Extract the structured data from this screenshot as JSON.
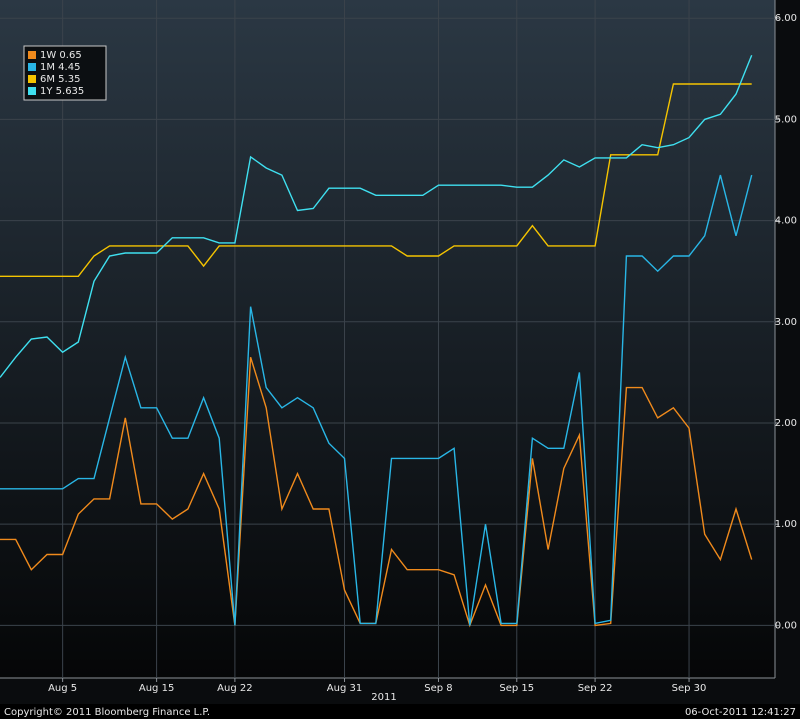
{
  "chart_data": {
    "type": "line",
    "categories": [
      null,
      null,
      null,
      null,
      "Aug 5",
      null,
      null,
      null,
      null,
      null,
      "Aug 15",
      null,
      null,
      null,
      null,
      "Aug 22",
      null,
      null,
      null,
      null,
      null,
      null,
      "Aug 31",
      null,
      null,
      null,
      null,
      null,
      "Sep 8",
      null,
      null,
      null,
      null,
      "Sep 15",
      null,
      null,
      null,
      null,
      "Sep 22",
      null,
      null,
      null,
      null,
      null,
      "Sep 30",
      null,
      null,
      null,
      null
    ],
    "xlabel": "2011",
    "series": [
      {
        "name": "1W 0.65",
        "color": "#f08a1c",
        "values": [
          0.85,
          0.85,
          0.55,
          0.7,
          0.7,
          1.1,
          1.25,
          1.25,
          2.05,
          1.2,
          1.2,
          1.05,
          1.15,
          1.5,
          1.15,
          0.0,
          2.65,
          2.15,
          1.15,
          1.5,
          1.15,
          1.15,
          0.35,
          0.02,
          0.02,
          0.75,
          0.55,
          0.55,
          0.55,
          0.5,
          0.0,
          0.4,
          0.0,
          0.0,
          1.65,
          0.75,
          1.55,
          1.88,
          0.0,
          0.02,
          2.35,
          2.35,
          2.05,
          2.15,
          1.95,
          0.9,
          0.65,
          1.15,
          0.65
        ]
      },
      {
        "name": "1M 4.45",
        "color": "#29b6e6",
        "values": [
          1.35,
          1.35,
          1.35,
          1.35,
          1.35,
          1.45,
          1.45,
          2.05,
          2.65,
          2.15,
          2.15,
          1.85,
          1.85,
          2.25,
          1.85,
          0.0,
          3.15,
          2.35,
          2.15,
          2.25,
          2.15,
          1.8,
          1.65,
          0.02,
          0.02,
          1.65,
          1.65,
          1.65,
          1.65,
          1.75,
          0.0,
          1.0,
          0.02,
          0.02,
          1.85,
          1.75,
          1.75,
          2.5,
          0.02,
          0.05,
          3.65,
          3.65,
          3.5,
          3.65,
          3.65,
          3.85,
          4.45,
          3.85,
          4.45
        ]
      },
      {
        "name": "6M 5.35",
        "color": "#f5c400",
        "values": [
          3.45,
          3.45,
          3.45,
          3.45,
          3.45,
          3.45,
          3.65,
          3.75,
          3.75,
          3.75,
          3.75,
          3.75,
          3.75,
          3.55,
          3.75,
          3.75,
          3.75,
          3.75,
          3.75,
          3.75,
          3.75,
          3.75,
          3.75,
          3.75,
          3.75,
          3.75,
          3.65,
          3.65,
          3.65,
          3.75,
          3.75,
          3.75,
          3.75,
          3.75,
          3.95,
          3.75,
          3.75,
          3.75,
          3.75,
          4.65,
          4.65,
          4.65,
          4.65,
          5.35,
          5.35,
          5.35,
          5.35,
          5.35,
          5.35
        ]
      },
      {
        "name": "1Y 5.635",
        "color": "#3fe0f0",
        "values": [
          2.45,
          2.65,
          2.83,
          2.85,
          2.7,
          2.8,
          3.4,
          3.65,
          3.68,
          3.68,
          3.68,
          3.83,
          3.83,
          3.83,
          3.78,
          3.78,
          4.63,
          4.52,
          4.45,
          4.1,
          4.12,
          4.32,
          4.32,
          4.32,
          4.25,
          4.25,
          4.25,
          4.25,
          4.35,
          4.35,
          4.35,
          4.35,
          4.35,
          4.33,
          4.33,
          4.45,
          4.6,
          4.53,
          4.62,
          4.62,
          4.62,
          4.75,
          4.72,
          4.75,
          4.82,
          5.0,
          5.05,
          5.25,
          5.635
        ]
      }
    ],
    "ylim": [
      -0.52,
      6.18
    ],
    "yticks": [
      {
        "value": 0,
        "label": "0.00"
      },
      {
        "value": 1,
        "label": "1.00"
      },
      {
        "value": 2,
        "label": "2.00"
      },
      {
        "value": 3,
        "label": "3.00"
      },
      {
        "value": 4,
        "label": "4.00"
      },
      {
        "value": 5,
        "label": "5.00"
      },
      {
        "value": 6,
        "label": "6.00"
      }
    ],
    "grid": true,
    "legend": "upper left",
    "copyright": "Copyright© 2011 Bloomberg Finance L.P.",
    "timestamp": "06-Oct-2011 12:41:27"
  }
}
